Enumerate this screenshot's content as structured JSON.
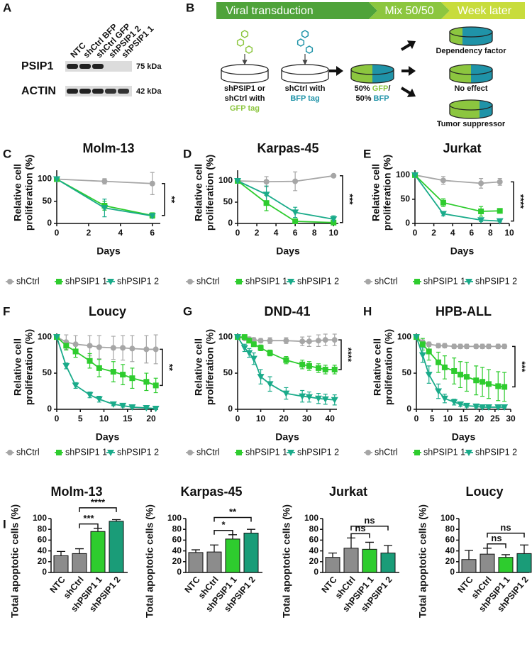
{
  "panel_labels": [
    "A",
    "B",
    "C",
    "D",
    "E",
    "F",
    "G",
    "H",
    "I"
  ],
  "panel_a": {
    "lanes": [
      "NTC",
      "shCtrl BFP",
      "shCtrl GFP",
      "shPSIP1 2",
      "shPSIP1 1"
    ],
    "rows": [
      {
        "name": "PSIP1",
        "size": "75 kDa"
      },
      {
        "name": "ACTIN",
        "size": "42 kDa"
      }
    ]
  },
  "panel_b": {
    "steps": [
      "Viral transduction",
      "Mix 50/50",
      "Week later"
    ],
    "dish1": [
      "shPSIP1 or",
      "shCtrl with",
      "GFP tag"
    ],
    "dish2": [
      "shCtrl with",
      "BFP tag"
    ],
    "mix": [
      "50% ",
      "GFP",
      "/",
      "50% ",
      "BFP"
    ],
    "outcomes": [
      "Dependency factor",
      "No effect",
      "Tumor suppressor"
    ]
  },
  "chart_data": [
    {
      "type": "line",
      "title": "Molm-13",
      "ylabel": [
        "Relative cell",
        "proliferation (%)"
      ],
      "xlabel": "Days",
      "x": [
        0,
        3,
        6
      ],
      "xlim": [
        0,
        6.5
      ],
      "ylim": [
        0,
        120
      ],
      "xticks": [
        0,
        2,
        4,
        6
      ],
      "yticks": [
        0,
        50,
        100
      ],
      "significance": "**",
      "series": [
        {
          "name": "shCtrl",
          "color": "#a6a6a6",
          "marker": "circle",
          "values": [
            100,
            95,
            90
          ],
          "errors": [
            0,
            6,
            25
          ]
        },
        {
          "name": "shPSIP1 1",
          "color": "#2ecc2e",
          "marker": "square",
          "values": [
            100,
            40,
            18
          ],
          "errors": [
            0,
            10,
            6
          ]
        },
        {
          "name": "shPSIP1 2",
          "color": "#1aab8a",
          "marker": "triangle-down",
          "values": [
            100,
            35,
            17
          ],
          "errors": [
            0,
            20,
            5
          ]
        }
      ]
    },
    {
      "type": "line",
      "title": "Karpas-45",
      "ylabel": [
        "Relative cell",
        "proliferation (%)"
      ],
      "xlabel": "Days",
      "x": [
        0,
        3,
        6,
        10
      ],
      "xlim": [
        0,
        10.5
      ],
      "ylim": [
        0,
        125
      ],
      "xticks": [
        0,
        2,
        4,
        6,
        8,
        10
      ],
      "yticks": [
        0,
        50,
        100
      ],
      "significance": "***",
      "series": [
        {
          "name": "shCtrl",
          "color": "#a6a6a6",
          "marker": "circle",
          "values": [
            100,
            98,
            99,
            112
          ],
          "errors": [
            0,
            12,
            22,
            2
          ]
        },
        {
          "name": "shPSIP1 1",
          "color": "#2ecc2e",
          "marker": "square",
          "values": [
            100,
            48,
            5,
            2
          ],
          "errors": [
            0,
            18,
            4,
            3
          ]
        },
        {
          "name": "shPSIP1 2",
          "color": "#1aab8a",
          "marker": "triangle-down",
          "values": [
            100,
            68,
            26,
            10
          ],
          "errors": [
            0,
            20,
            12,
            8
          ]
        }
      ]
    },
    {
      "type": "line",
      "title": "Jurkat",
      "ylabel": [
        "Relative cell",
        "proliferation (%)"
      ],
      "xlabel": "Days",
      "x": [
        0,
        3,
        7,
        9
      ],
      "xlim": [
        0,
        10
      ],
      "ylim": [
        0,
        110
      ],
      "xticks": [
        0,
        2,
        4,
        6,
        8,
        10
      ],
      "yticks": [
        0,
        50,
        100
      ],
      "significance": "****",
      "series": [
        {
          "name": "shCtrl",
          "color": "#a6a6a6",
          "marker": "circle",
          "values": [
            100,
            89,
            83,
            86
          ],
          "errors": [
            0,
            8,
            10,
            7
          ]
        },
        {
          "name": "shPSIP1 1",
          "color": "#2ecc2e",
          "marker": "square",
          "values": [
            100,
            43,
            25,
            26
          ],
          "errors": [
            0,
            8,
            10,
            2
          ]
        },
        {
          "name": "shPSIP1 2",
          "color": "#1aab8a",
          "marker": "triangle-down",
          "values": [
            100,
            20,
            7,
            5
          ],
          "errors": [
            0,
            4,
            3,
            2
          ]
        }
      ]
    },
    {
      "type": "line",
      "title": "Loucy",
      "ylabel": [
        "Relative cell",
        "proliferation (%)"
      ],
      "xlabel": "Days",
      "x": [
        0,
        2,
        4,
        7,
        9,
        12,
        14,
        16,
        19,
        21
      ],
      "xlim": [
        0,
        21.5
      ],
      "ylim": [
        0,
        105
      ],
      "xticks": [
        0,
        5,
        10,
        15,
        20
      ],
      "yticks": [
        0,
        50,
        100
      ],
      "significance": "**",
      "series": [
        {
          "name": "shCtrl",
          "color": "#a6a6a6",
          "marker": "circle",
          "values": [
            100,
            93,
            90,
            88,
            86,
            85,
            85,
            84,
            83,
            83
          ],
          "errors": [
            0,
            10,
            12,
            14,
            16,
            16,
            17,
            18,
            19,
            20
          ]
        },
        {
          "name": "shPSIP1 1",
          "color": "#2ecc2e",
          "marker": "square",
          "values": [
            100,
            88,
            80,
            67,
            57,
            52,
            48,
            43,
            38,
            33
          ],
          "errors": [
            0,
            6,
            8,
            10,
            12,
            14,
            14,
            14,
            12,
            10
          ]
        },
        {
          "name": "shPSIP1 2",
          "color": "#1aab8a",
          "marker": "triangle-down",
          "values": [
            100,
            60,
            33,
            20,
            14,
            7,
            5,
            3,
            2,
            1
          ],
          "errors": [
            0,
            4,
            4,
            4,
            4,
            2,
            2,
            1,
            1,
            1
          ]
        }
      ]
    },
    {
      "type": "line",
      "title": "DND-41",
      "ylabel": [
        "Relative cell",
        "proliferation (%)"
      ],
      "xlabel": "Days",
      "x": [
        0,
        3,
        5,
        7,
        10,
        14,
        21,
        28,
        31,
        35,
        38,
        42
      ],
      "xlim": [
        0,
        43
      ],
      "ylim": [
        0,
        105
      ],
      "xticks": [
        0,
        10,
        20,
        30,
        40
      ],
      "yticks": [
        0,
        50,
        100
      ],
      "significance": "****",
      "series": [
        {
          "name": "shCtrl",
          "color": "#a6a6a6",
          "marker": "circle",
          "values": [
            100,
            98,
            97,
            96,
            95,
            95,
            95,
            94,
            94,
            95,
            96,
            96
          ],
          "errors": [
            0,
            2,
            3,
            3,
            3,
            4,
            4,
            6,
            7,
            8,
            8,
            8
          ]
        },
        {
          "name": "shPSIP1 1",
          "color": "#2ecc2e",
          "marker": "square",
          "values": [
            100,
            100,
            95,
            90,
            85,
            78,
            68,
            62,
            60,
            57,
            55,
            55
          ],
          "errors": [
            0,
            2,
            3,
            3,
            4,
            4,
            5,
            6,
            6,
            6,
            6,
            6
          ]
        },
        {
          "name": "shPSIP1 2",
          "color": "#1aab8a",
          "marker": "triangle-down",
          "values": [
            100,
            85,
            78,
            70,
            45,
            35,
            22,
            18,
            17,
            15,
            14,
            13
          ],
          "errors": [
            0,
            5,
            6,
            8,
            10,
            10,
            8,
            8,
            7,
            7,
            7,
            7
          ]
        }
      ]
    },
    {
      "type": "line",
      "title": "HPB-ALL",
      "ylabel": [
        "Relative cell",
        "proliferation (%)"
      ],
      "xlabel": "Days",
      "x": [
        0,
        2,
        4,
        7,
        9,
        12,
        14,
        16,
        19,
        21,
        23,
        26,
        28
      ],
      "xlim": [
        0,
        30
      ],
      "ylim": [
        0,
        105
      ],
      "xticks": [
        0,
        5,
        10,
        15,
        20,
        25,
        30
      ],
      "yticks": [
        0,
        50,
        100
      ],
      "significance": "***",
      "series": [
        {
          "name": "shCtrl",
          "color": "#a6a6a6",
          "marker": "circle",
          "values": [
            100,
            93,
            90,
            88,
            88,
            87,
            87,
            87,
            87,
            87,
            87,
            87,
            87
          ],
          "errors": [
            0,
            3,
            3,
            3,
            3,
            3,
            3,
            3,
            3,
            3,
            3,
            3,
            3
          ]
        },
        {
          "name": "shPSIP1 1",
          "color": "#2ecc2e",
          "marker": "square",
          "values": [
            100,
            90,
            80,
            65,
            58,
            53,
            48,
            45,
            40,
            38,
            35,
            32,
            31
          ],
          "errors": [
            0,
            8,
            12,
            14,
            16,
            18,
            18,
            20,
            20,
            20,
            20,
            20,
            20
          ]
        },
        {
          "name": "shPSIP1 2",
          "color": "#1aab8a",
          "marker": "triangle-down",
          "values": [
            100,
            75,
            48,
            25,
            15,
            10,
            7,
            5,
            4,
            3,
            3,
            3,
            3
          ],
          "errors": [
            0,
            10,
            12,
            10,
            6,
            4,
            3,
            2,
            2,
            1,
            1,
            1,
            1
          ]
        }
      ]
    },
    {
      "type": "bar",
      "title": "Molm-13",
      "ylabel": "Total apoptotic cells (%)",
      "categories": [
        "NTC",
        "shCtrl",
        "shPSIP1 1",
        "shPSIP1 2"
      ],
      "values": [
        31,
        35,
        76,
        95
      ],
      "errors": [
        8,
        9,
        6,
        3
      ],
      "colors": [
        "#8c8c8c",
        "#8c8c8c",
        "#2ecc2e",
        "#1a9c78"
      ],
      "ylim": [
        0,
        100
      ],
      "yticks": [
        0,
        20,
        40,
        60,
        80,
        100
      ],
      "comparisons": [
        "***",
        "****"
      ]
    },
    {
      "type": "bar",
      "title": "Karpas-45",
      "ylabel": "Total apoptotic cells (%)",
      "categories": [
        "NTC",
        "shCtrl",
        "shPSIP1 1",
        "shPSIP1 2"
      ],
      "values": [
        37,
        38,
        62,
        73
      ],
      "errors": [
        5,
        13,
        8,
        7
      ],
      "colors": [
        "#8c8c8c",
        "#8c8c8c",
        "#2ecc2e",
        "#1a9c78"
      ],
      "ylim": [
        0,
        100
      ],
      "yticks": [
        0,
        20,
        40,
        60,
        80,
        100
      ],
      "comparisons": [
        "*",
        "**"
      ]
    },
    {
      "type": "bar",
      "title": "Jurkat",
      "ylabel": "Total apoptotic cells (%)",
      "categories": [
        "NTC",
        "shCtrl",
        "shPSIP1 1",
        "shPSIP1 2"
      ],
      "values": [
        28,
        45,
        43,
        36
      ],
      "errors": [
        8,
        19,
        13,
        14
      ],
      "colors": [
        "#8c8c8c",
        "#8c8c8c",
        "#2ecc2e",
        "#1a9c78"
      ],
      "ylim": [
        0,
        100
      ],
      "yticks": [
        0,
        20,
        40,
        60,
        80,
        100
      ],
      "comparisons": [
        "ns",
        "ns"
      ]
    },
    {
      "type": "bar",
      "title": "Loucy",
      "ylabel": "Total apoptotic cells (%)",
      "categories": [
        "NTC",
        "shCtrl",
        "shPSIP1 1",
        "shPSIP1 2"
      ],
      "values": [
        24,
        34,
        28,
        35
      ],
      "errors": [
        17,
        11,
        5,
        16
      ],
      "colors": [
        "#8c8c8c",
        "#8c8c8c",
        "#2ecc2e",
        "#1a9c78"
      ],
      "ylim": [
        0,
        100
      ],
      "yticks": [
        0,
        20,
        40,
        60,
        80,
        100
      ],
      "comparisons": [
        "ns",
        "ns"
      ]
    }
  ]
}
